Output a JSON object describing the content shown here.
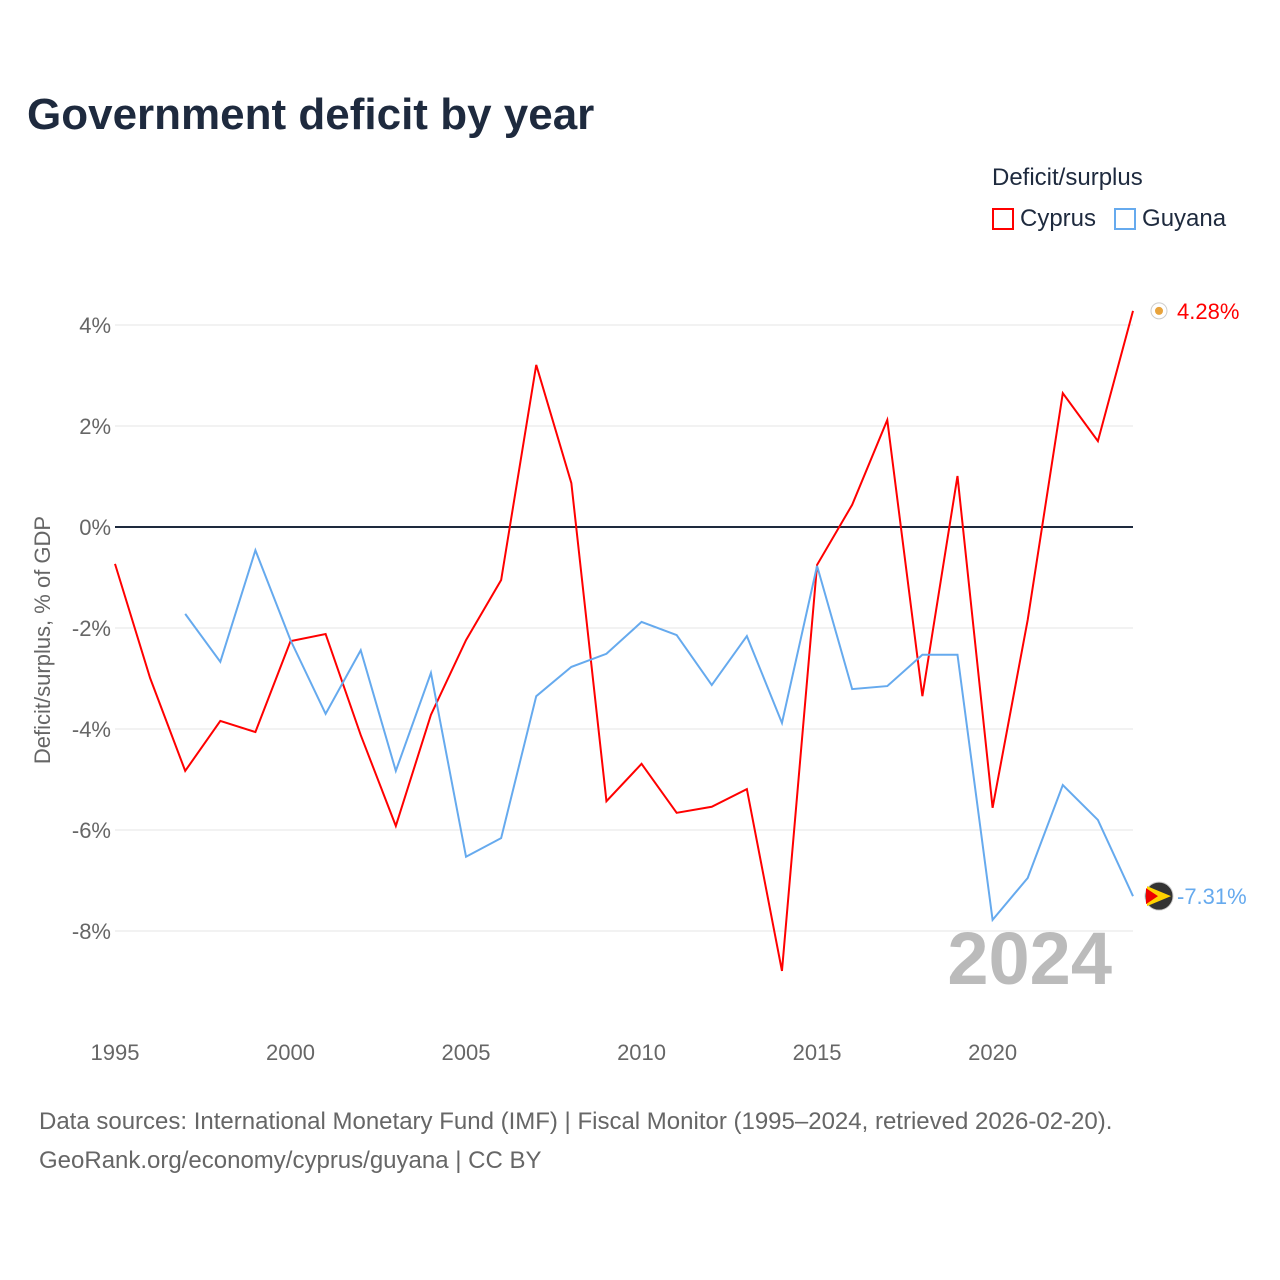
{
  "title": "Government deficit by year",
  "legend": {
    "title": "Deficit/surplus",
    "items": [
      {
        "label": "Cyprus",
        "color": "#ff0000"
      },
      {
        "label": "Guyana",
        "color": "#66aaee"
      }
    ]
  },
  "footer": {
    "line1": "Data sources: International Monetary Fund (IMF) | Fiscal Monitor (1995–2024, retrieved 2026-02-20).",
    "line2": "GeoRank.org/economy/cyprus/guyana | CC BY"
  },
  "chart_data": {
    "type": "line",
    "title": "Government deficit by year",
    "xlabel": "",
    "ylabel": "Deficit/surplus, % of GDP",
    "xlim": [
      1995,
      2024
    ],
    "ylim": [
      -9.5,
      4.5
    ],
    "xticks": [
      1995,
      2000,
      2005,
      2010,
      2015,
      2020
    ],
    "xtick_labels": [
      "1995",
      "2000",
      "2005",
      "2010",
      "2015",
      "2020"
    ],
    "yticks": [
      4,
      2,
      0,
      -2,
      -4,
      -6,
      -8
    ],
    "ytick_labels": [
      "4%",
      "2%",
      "0%",
      "-2%",
      "-4%",
      "-6%",
      "-8%"
    ],
    "grid": true,
    "legend_position": "top-right",
    "year_watermark": "2024",
    "series": [
      {
        "name": "Cyprus",
        "color": "#ff0000",
        "end_label": "4.28%",
        "x": [
          1995,
          1996,
          1997,
          1998,
          1999,
          2000,
          2001,
          2002,
          2003,
          2004,
          2005,
          2006,
          2007,
          2008,
          2009,
          2010,
          2011,
          2012,
          2013,
          2014,
          2015,
          2016,
          2017,
          2018,
          2019,
          2020,
          2021,
          2022,
          2023,
          2024
        ],
        "values": [
          -0.73,
          -2.99,
          -4.83,
          -3.84,
          -4.06,
          -2.26,
          -2.12,
          -4.12,
          -5.92,
          -3.72,
          -2.24,
          -1.05,
          3.21,
          0.87,
          -5.43,
          -4.69,
          -5.66,
          -5.54,
          -5.19,
          -8.79,
          -0.75,
          0.44,
          2.12,
          -3.35,
          1.01,
          -5.56,
          -1.84,
          2.65,
          1.7,
          4.28
        ]
      },
      {
        "name": "Guyana",
        "color": "#66aaee",
        "end_label": "-7.31%",
        "x": [
          1997,
          1998,
          1999,
          2000,
          2001,
          2002,
          2003,
          2004,
          2005,
          2006,
          2007,
          2008,
          2009,
          2010,
          2011,
          2012,
          2013,
          2014,
          2015,
          2016,
          2017,
          2018,
          2019,
          2020,
          2021,
          2022,
          2023,
          2024
        ],
        "values": [
          -1.72,
          -2.67,
          -0.46,
          -2.24,
          -3.7,
          -2.44,
          -4.83,
          -2.89,
          -6.53,
          -6.16,
          -3.35,
          -2.77,
          -2.51,
          -1.88,
          -2.14,
          -3.13,
          -2.16,
          -3.88,
          -0.77,
          -3.21,
          -3.15,
          -2.53,
          -2.53,
          -7.78,
          -6.95,
          -5.11,
          -5.8,
          -7.31
        ]
      }
    ]
  }
}
